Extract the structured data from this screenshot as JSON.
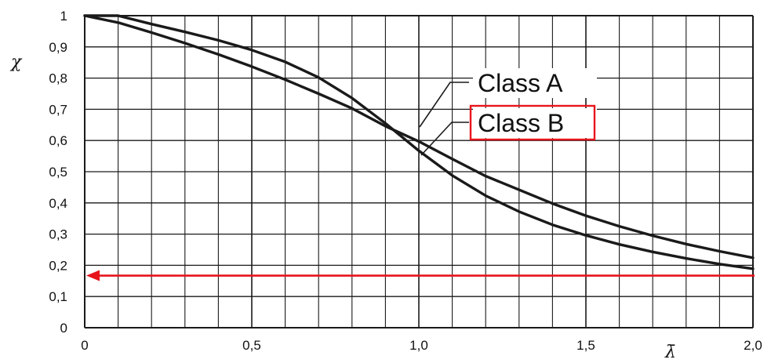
{
  "chart_data": {
    "type": "line",
    "title": "",
    "xlabel": "λ̄",
    "ylabel": "χ",
    "xlim": [
      0,
      2.0
    ],
    "ylim": [
      0,
      1.0
    ],
    "x_ticks": [
      0,
      0.5,
      1.0,
      1.5,
      2.0
    ],
    "x_tick_labels": [
      "0",
      "0,5",
      "1,0",
      "1,5",
      "2,0"
    ],
    "y_ticks": [
      0,
      0.1,
      0.2,
      0.3,
      0.4,
      0.5,
      0.6,
      0.7,
      0.8,
      0.9,
      1.0
    ],
    "y_tick_labels": [
      "0",
      "0,1",
      "0,2",
      "0,3",
      "0,4",
      "0,5",
      "0,6",
      "0,7",
      "0,8",
      "0,9",
      "1"
    ],
    "x_grid_step": 0.1,
    "grid": true,
    "series": [
      {
        "name": "Class A",
        "x": [
          0,
          0.1,
          0.2,
          0.3,
          0.4,
          0.5,
          0.6,
          0.7,
          0.8,
          0.9,
          1.0,
          1.1,
          1.2,
          1.3,
          1.4,
          1.5,
          1.6,
          1.7,
          1.8,
          1.9,
          2.0
        ],
        "y": [
          1.0,
          1.0,
          0.973,
          0.948,
          0.921,
          0.89,
          0.852,
          0.802,
          0.736,
          0.655,
          0.567,
          0.488,
          0.423,
          0.372,
          0.33,
          0.296,
          0.267,
          0.243,
          0.222,
          0.204,
          0.189
        ]
      },
      {
        "name": "Class B",
        "x": [
          0,
          0.1,
          0.2,
          0.3,
          0.4,
          0.5,
          0.6,
          0.7,
          0.8,
          0.9,
          1.0,
          1.1,
          1.2,
          1.3,
          1.4,
          1.5,
          1.6,
          1.7,
          1.8,
          1.9,
          2.0
        ],
        "y": [
          1.0,
          0.978,
          0.946,
          0.912,
          0.876,
          0.837,
          0.795,
          0.75,
          0.703,
          0.646,
          0.597,
          0.541,
          0.486,
          0.442,
          0.398,
          0.359,
          0.325,
          0.295,
          0.268,
          0.245,
          0.224
        ]
      }
    ],
    "legend": [
      {
        "label": "Class A",
        "highlighted": false
      },
      {
        "label": "Class B",
        "highlighted": true
      }
    ],
    "annotations": [
      {
        "type": "horizontal-arrow",
        "y": 0.167,
        "direction": "left",
        "color": "#e8141b"
      },
      {
        "type": "highlight-box",
        "target": "Class B",
        "color": "#e8141b"
      }
    ]
  },
  "colors": {
    "curve": "#1a1a1a",
    "grid": "#1a1a1a",
    "highlight": "#e8141b"
  }
}
